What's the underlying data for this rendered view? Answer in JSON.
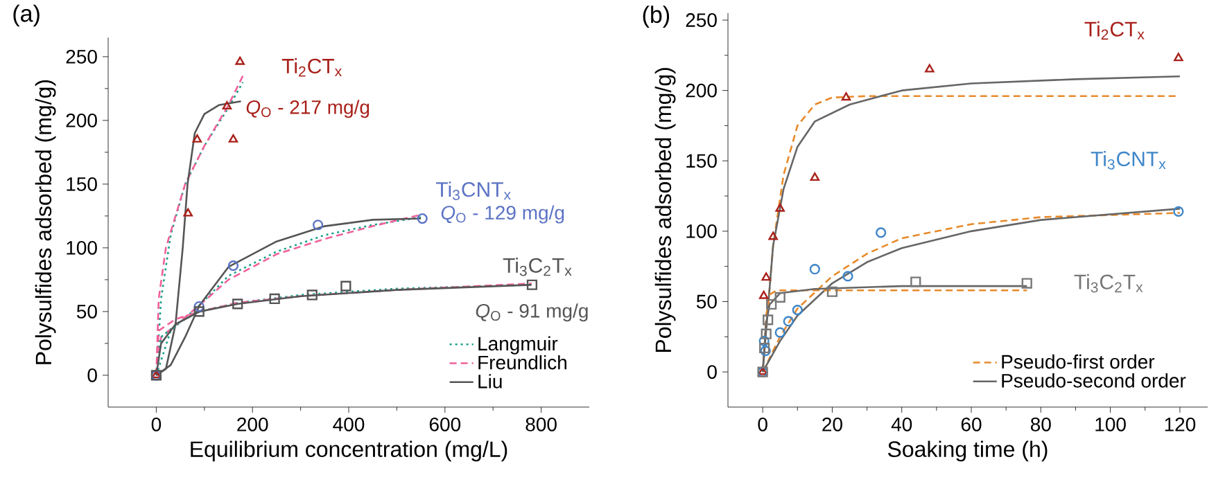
{
  "chart_data": [
    {
      "type": "scatter",
      "title": "(a)",
      "xlabel": "Equilibrium concentration (mg/L)",
      "ylabel": "Polysulfides adsorbed (mg/g)",
      "xlim": [
        -100,
        900
      ],
      "ylim": [
        -25,
        265
      ],
      "xticks": [
        0,
        200,
        400,
        600,
        800
      ],
      "yticks": [
        0,
        50,
        100,
        150,
        200,
        250
      ],
      "grid": false,
      "legend": "bottom right",
      "annotations": [
        "*Q*$_{O}$ - 217 mg/g",
        "*Q*$_{O}$ - 129 mg/g",
        "*Q*$_{O}$ - 91 mg/g"
      ],
      "series": [
        {
          "name": "Ti$_{2}$CT$_{x}$",
          "color": "#a8201a",
          "marker": "triangle",
          "x": [
            0,
            66,
            85,
            147,
            160,
            174
          ],
          "values": [
            0,
            127,
            185,
            211,
            185,
            246
          ]
        },
        {
          "name": "Ti$_{3}$CNT$_{x}$",
          "color": "#5b73c4",
          "marker": "circle",
          "x": [
            0,
            89,
            160,
            336,
            553
          ],
          "values": [
            0,
            54,
            86,
            118,
            123
          ]
        },
        {
          "name": "Ti$_{3}$C$_{2}$T$_{x}$",
          "color": "#555555",
          "marker": "square",
          "x": [
            0,
            89,
            169,
            246,
            324,
            394,
            781
          ],
          "values": [
            0,
            50,
            56,
            60,
            63,
            70,
            71
          ]
        },
        {
          "type": "line",
          "name": "Langmuir",
          "color": "#1aa08a",
          "line_style": "dotted",
          "x": [
            0,
            10,
            30,
            60,
            100,
            150,
            180
          ],
          "values": [
            0,
            60,
            110,
            150,
            180,
            210,
            230
          ]
        },
        {
          "type": "line",
          "name": "Freundlich",
          "color": "#f0609a",
          "line_style": "dashed",
          "x": [
            0,
            5,
            20,
            60,
            100,
            150,
            180
          ],
          "values": [
            0,
            60,
            100,
            150,
            180,
            212,
            235
          ]
        },
        {
          "type": "line",
          "name": "Liu",
          "color": "#555555",
          "line_style": "solid",
          "x": [
            0,
            20,
            40,
            55,
            65,
            80,
            100,
            130,
            176
          ],
          "values": [
            0,
            5,
            40,
            100,
            150,
            190,
            205,
            212,
            215
          ]
        },
        {
          "type": "line",
          "color": "#1aa08a",
          "line_style": "dotted",
          "x": [
            0,
            30,
            90,
            150,
            250,
            350,
            450,
            550
          ],
          "values": [
            0,
            35,
            55,
            78,
            97,
            110,
            118,
            124
          ]
        },
        {
          "type": "line",
          "color": "#f0609a",
          "line_style": "dashed",
          "x": [
            0,
            10,
            90,
            150,
            250,
            350,
            450,
            550
          ],
          "values": [
            0,
            30,
            55,
            75,
            95,
            107,
            117,
            126
          ]
        },
        {
          "type": "line",
          "color": "#555555",
          "line_style": "solid",
          "x": [
            0,
            30,
            60,
            90,
            150,
            250,
            350,
            450,
            550
          ],
          "values": [
            0,
            8,
            30,
            55,
            85,
            105,
            117,
            122,
            123
          ]
        },
        {
          "type": "line",
          "color": "#1aa08a",
          "line_style": "dotted",
          "x": [
            0,
            10,
            50,
            90,
            170,
            300,
            500,
            780
          ],
          "values": [
            0,
            30,
            42,
            50,
            57,
            63,
            68,
            71
          ]
        },
        {
          "type": "line",
          "color": "#f0609a",
          "line_style": "dashed",
          "x": [
            0,
            5,
            40,
            90,
            170,
            300,
            500,
            780
          ],
          "values": [
            0,
            35,
            44,
            50,
            57,
            62,
            67,
            72
          ]
        },
        {
          "type": "line",
          "color": "#555555",
          "line_style": "solid",
          "x": [
            0,
            10,
            40,
            90,
            170,
            300,
            500,
            780
          ],
          "values": [
            0,
            25,
            40,
            50,
            56,
            62,
            67,
            71
          ]
        }
      ]
    },
    {
      "type": "scatter",
      "title": "(b)",
      "xlabel": "Soaking time (h)",
      "ylabel": "Polysulfides adsorbed (mg/g)",
      "xlim": [
        -10,
        128
      ],
      "ylim": [
        -25,
        255
      ],
      "xticks": [
        0,
        20,
        40,
        60,
        80,
        100,
        120
      ],
      "yticks": [
        0,
        50,
        100,
        150,
        200,
        250
      ],
      "grid": false,
      "legend": "bottom right",
      "series": [
        {
          "name": "Ti$_{2}$CT$_{x}$",
          "color": "#a8201a",
          "marker": "triangle",
          "x": [
            0,
            0.3,
            1,
            3,
            5,
            15,
            24,
            48,
            119.6
          ],
          "values": [
            0,
            54,
            67,
            96,
            116,
            138,
            195,
            215,
            223
          ]
        },
        {
          "name": "Ti$_{3}$CNT$_{x}$",
          "color": "#3f86c8",
          "marker": "circle",
          "x": [
            0,
            0.4,
            0.8,
            5,
            7.4,
            10,
            15,
            24.5,
            34,
            119.6
          ],
          "values": [
            0,
            22,
            15,
            28,
            36,
            44,
            73,
            68,
            99,
            114
          ]
        },
        {
          "name": "Ti$_{3}$C$_{2}$T$_{x}$",
          "color": "#777777",
          "marker": "square",
          "x": [
            0,
            0.5,
            1,
            1.5,
            2.5,
            5,
            20,
            44,
            76
          ],
          "values": [
            0,
            17,
            27,
            37,
            48,
            53,
            57,
            64,
            63
          ]
        },
        {
          "type": "line",
          "name": "Pseudo-first order",
          "color": "#e8892a",
          "line_style": "dashed",
          "x": [
            0,
            3,
            6,
            10,
            15,
            20,
            30,
            120
          ],
          "values": [
            0,
            90,
            140,
            175,
            190,
            195,
            196,
            196
          ]
        },
        {
          "type": "line",
          "name": "Pseudo-second order",
          "color": "#666666",
          "line_style": "solid",
          "x": [
            0,
            3,
            6,
            10,
            15,
            25,
            40,
            60,
            90,
            120
          ],
          "values": [
            0,
            90,
            130,
            160,
            178,
            190,
            200,
            205,
            208,
            210
          ]
        },
        {
          "type": "line",
          "color": "#e8892a",
          "line_style": "dashed",
          "x": [
            0,
            5,
            10,
            20,
            30,
            40,
            60,
            80,
            120
          ],
          "values": [
            0,
            25,
            45,
            68,
            84,
            95,
            105,
            110,
            113
          ]
        },
        {
          "type": "line",
          "color": "#666666",
          "line_style": "solid",
          "x": [
            0,
            5,
            10,
            20,
            30,
            40,
            60,
            80,
            120
          ],
          "values": [
            0,
            22,
            40,
            63,
            78,
            88,
            100,
            108,
            116
          ]
        },
        {
          "type": "line",
          "color": "#e8892a",
          "line_style": "dashed",
          "x": [
            0,
            1,
            2,
            4,
            10,
            76
          ],
          "values": [
            0,
            40,
            55,
            58,
            58,
            58
          ]
        },
        {
          "type": "line",
          "color": "#666666",
          "line_style": "solid",
          "x": [
            0,
            1,
            2,
            5,
            15,
            40,
            76
          ],
          "values": [
            0,
            35,
            48,
            56,
            59,
            61,
            61
          ]
        }
      ]
    }
  ]
}
